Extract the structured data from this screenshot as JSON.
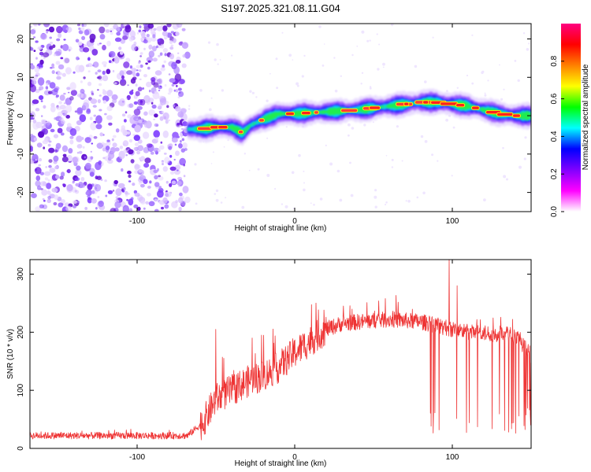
{
  "title": "S197.2025.321.08.11.G04",
  "chart_data": [
    {
      "type": "heatmap",
      "xlabel": "Height of straight line (km)",
      "ylabel": "Frequency (Hz)",
      "xlim": [
        -168,
        150
      ],
      "ylim": [
        -25,
        24
      ],
      "xticks": [
        -100,
        0,
        100
      ],
      "yticks": [
        -20,
        -10,
        0,
        10,
        20
      ],
      "colorbar_label": "Normalized spectral amplitude",
      "colorbar_range": [
        0.0,
        1.0
      ],
      "colorbar_ticks": [
        0.0,
        0.2,
        0.4,
        0.6,
        0.8
      ],
      "colorbar_colors": [
        "#ffffff",
        "#ff00ff",
        "#8000ff",
        "#0000ff",
        "#00ffff",
        "#00ff00",
        "#ffff00",
        "#ff8000",
        "#ff0000",
        "#ff0080"
      ],
      "noise_region_x": [
        -168,
        -68
      ],
      "signal_ridge": {
        "x": [
          -68,
          -60,
          -50,
          -40,
          -33,
          -28,
          -20,
          -10,
          0,
          20,
          40,
          60,
          80,
          90,
          100,
          110,
          120,
          130,
          140,
          150
        ],
        "frequency": [
          -3.5,
          -3.5,
          -3,
          -3,
          -4.5,
          -2.5,
          -1,
          0.5,
          0.5,
          1,
          1.5,
          2.5,
          3.5,
          3.5,
          3,
          2.5,
          1.5,
          0.5,
          0,
          0
        ]
      }
    },
    {
      "type": "line",
      "xlabel": "Height of straight line (km)",
      "ylabel": "SNR (10 * v/v)",
      "xlim": [
        -168,
        150
      ],
      "ylim": [
        0,
        325
      ],
      "xticks": [
        -100,
        0,
        100
      ],
      "yticks": [
        0,
        100,
        200,
        300
      ],
      "color": "#ee3333",
      "envelope": {
        "x": [
          -168,
          -100,
          -68,
          -58,
          -50,
          -40,
          -30,
          -20,
          -10,
          0,
          10,
          20,
          30,
          50,
          60,
          70,
          80,
          90,
          100,
          110,
          120,
          130,
          140,
          150
        ],
        "y": [
          22,
          22,
          22,
          45,
          85,
          100,
          115,
          125,
          140,
          165,
          185,
          205,
          215,
          220,
          222,
          220,
          218,
          212,
          205,
          200,
          198,
          197,
          195,
          160
        ]
      },
      "spikes": [
        {
          "x": -50,
          "y": 205
        },
        {
          "x": -45,
          "y": 155
        },
        {
          "x": -27,
          "y": 190
        },
        {
          "x": -21,
          "y": 195
        },
        {
          "x": 98,
          "y": 325
        },
        {
          "x": 103,
          "y": 280
        }
      ],
      "dropouts_x_range": [
        85,
        150
      ],
      "dropout_min_y": 25
    }
  ]
}
